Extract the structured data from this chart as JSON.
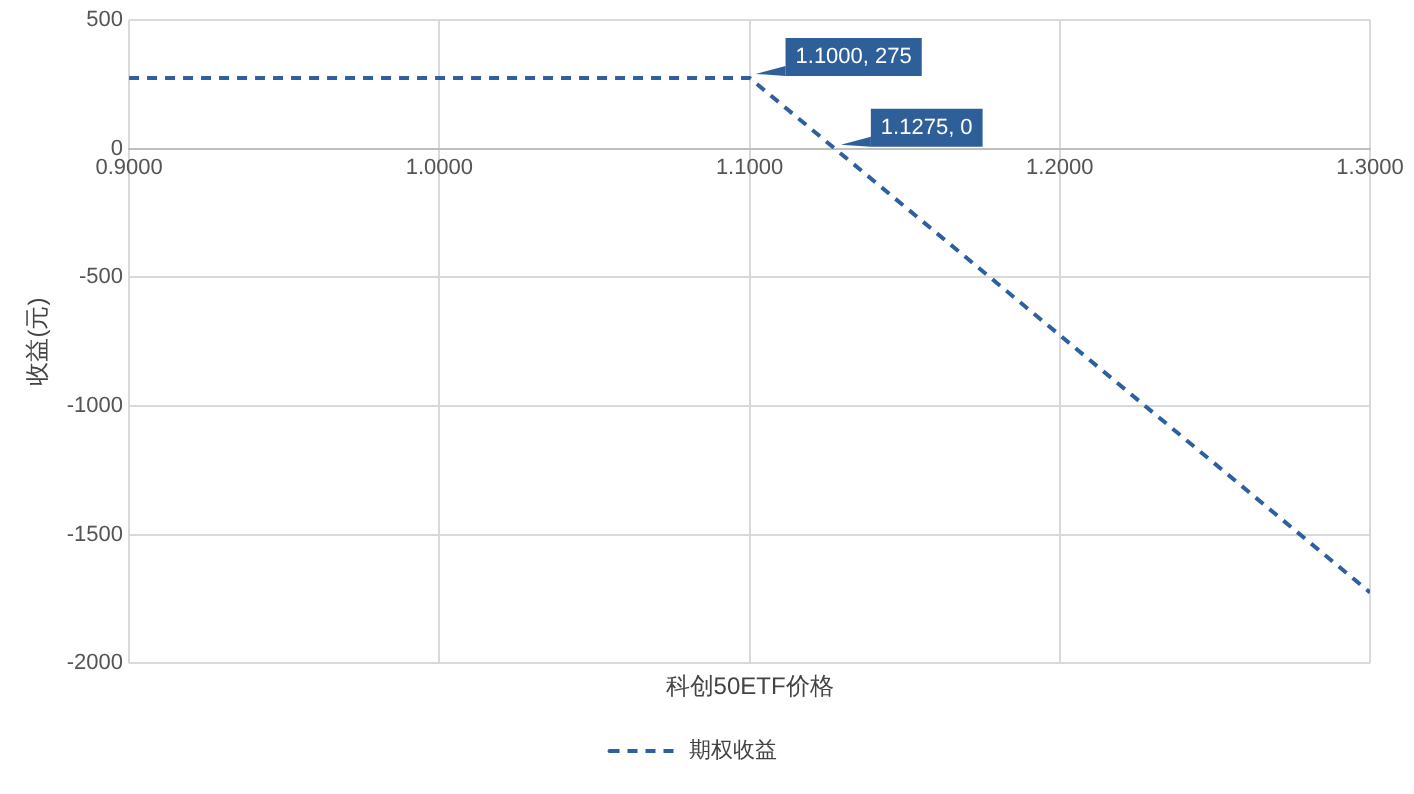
{
  "chart_data": {
    "type": "line",
    "xlabel": "科创50ETF价格",
    "ylabel": "收益(元)",
    "series": [
      {
        "name": "期权收益",
        "color": "#2e5f9e",
        "x": [
          0.9,
          1.1,
          1.1275,
          1.3
        ],
        "values": [
          275,
          275,
          0,
          -1725
        ]
      }
    ],
    "xlim": [
      0.9,
      1.3
    ],
    "xticks": [
      {
        "value": 0.9,
        "label": "0.9000"
      },
      {
        "value": 1.0,
        "label": "1.0000"
      },
      {
        "value": 1.1,
        "label": "1.1000"
      },
      {
        "value": 1.2,
        "label": "1.2000"
      },
      {
        "value": 1.3,
        "label": "1.3000"
      }
    ],
    "ylim": [
      -2000,
      500
    ],
    "yticks": [
      -2000,
      -1500,
      -1000,
      -500,
      0,
      500
    ],
    "annotations": [
      {
        "text": "1.1000, 275",
        "x": 1.1,
        "y": 275
      },
      {
        "text": "1.1275, 0",
        "x": 1.1275,
        "y": 0
      }
    ],
    "grid": true,
    "legend": "bottom",
    "marker": "none",
    "line_style": "dashed"
  }
}
